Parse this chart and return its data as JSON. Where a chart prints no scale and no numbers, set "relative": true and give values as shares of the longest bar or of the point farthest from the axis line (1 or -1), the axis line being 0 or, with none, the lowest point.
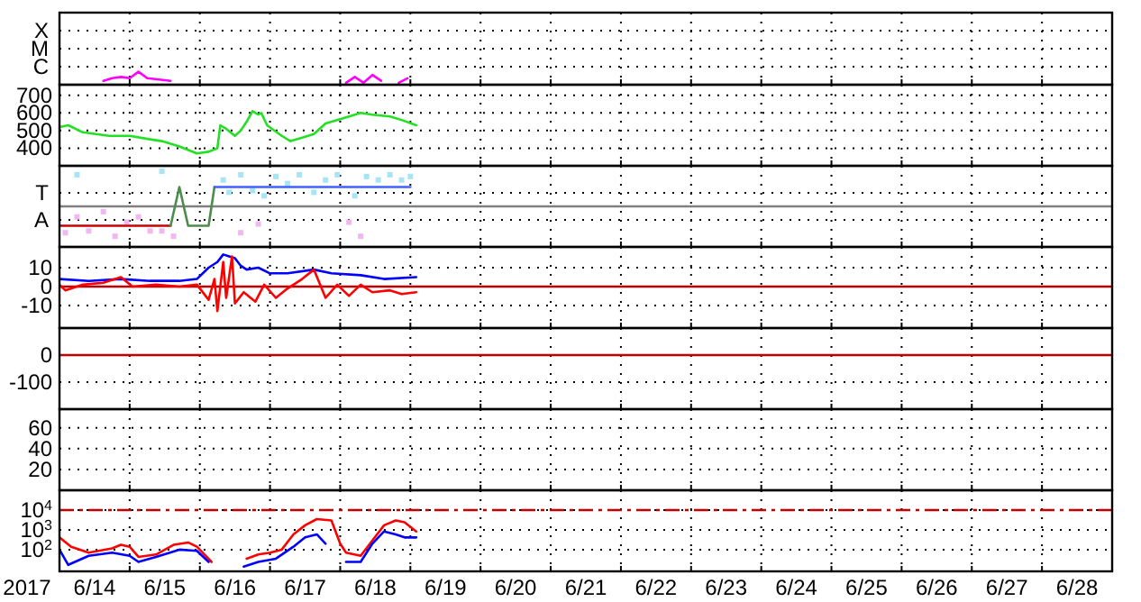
{
  "chart_data": [
    {
      "type": "line",
      "relative": true,
      "xlim": [
        "2017-06-14",
        "2017-06-29"
      ],
      "grid": "x",
      "tick_labels": false,
      "marker": "none",
      "annotations": [
        "X",
        "M",
        "C"
      ],
      "xticks": [
        {
          "value": "2017-06-15",
          "label": null
        },
        {
          "value": "2017-06-16",
          "label": null
        },
        {
          "value": "2017-06-17",
          "label": null
        },
        {
          "value": "2017-06-18",
          "label": null
        },
        {
          "value": "2017-06-19",
          "label": null
        },
        {
          "value": "2017-06-20",
          "label": null
        },
        {
          "value": "2017-06-21",
          "label": null
        },
        {
          "value": "2017-06-22",
          "label": null
        },
        {
          "value": "2017-06-23",
          "label": null
        },
        {
          "value": "2017-06-24",
          "label": null
        },
        {
          "value": "2017-06-25",
          "label": null
        },
        {
          "value": "2017-06-26",
          "label": null
        },
        {
          "value": "2017-06-27",
          "label": null
        },
        {
          "value": "2017-06-28",
          "label": null
        }
      ],
      "series": [
        {
          "color": "#ff00ff",
          "x": [
            "2017-06-14T15:00",
            "2017-06-14T18:00",
            "2017-06-14T21:00",
            "2017-06-15T00:00",
            "2017-06-15T03:00",
            "2017-06-15T06:00",
            "2017-06-15T10:00",
            "2017-06-15T14:00"
          ],
          "values": [
            0.3,
            0.5,
            0.6,
            0.5,
            1,
            0.5,
            0.4,
            0.3
          ]
        },
        {
          "color": "#ff00ff",
          "x": [
            "2017-06-18T02:00",
            "2017-06-18T05:00",
            "2017-06-18T08:00",
            "2017-06-18T11:00",
            "2017-06-18T14:00"
          ],
          "values": [
            0.15,
            0.6,
            0.15,
            0.75,
            0.3
          ]
        },
        {
          "color": "#ff00ff",
          "x": [
            "2017-06-18T20:00",
            "2017-06-18T23:00"
          ],
          "values": [
            0.15,
            0.5
          ]
        }
      ]
    },
    {
      "type": "line",
      "xlim": [
        "2017-06-14",
        "2017-06-29"
      ],
      "ylim": [
        300,
        760
      ],
      "grid": true,
      "tick_labels": "y",
      "marker": "none",
      "yticks": [
        400,
        500,
        600,
        700
      ],
      "xticks": [
        {
          "value": "2017-06-15",
          "label": null
        },
        {
          "value": "2017-06-16",
          "label": null
        },
        {
          "value": "2017-06-17",
          "label": null
        },
        {
          "value": "2017-06-18",
          "label": null
        },
        {
          "value": "2017-06-19",
          "label": null
        },
        {
          "value": "2017-06-20",
          "label": null
        },
        {
          "value": "2017-06-21",
          "label": null
        },
        {
          "value": "2017-06-22",
          "label": null
        },
        {
          "value": "2017-06-23",
          "label": null
        },
        {
          "value": "2017-06-24",
          "label": null
        },
        {
          "value": "2017-06-25",
          "label": null
        },
        {
          "value": "2017-06-26",
          "label": null
        },
        {
          "value": "2017-06-27",
          "label": null
        },
        {
          "value": "2017-06-28",
          "label": null
        }
      ],
      "series": [
        {
          "color": "#22e022",
          "x": [
            "2017-06-14T00:00",
            "2017-06-14T03:00",
            "2017-06-14T08:00",
            "2017-06-14T17:00",
            "2017-06-15T00:00",
            "2017-06-15T07:00",
            "2017-06-15T11:00",
            "2017-06-15T17:00",
            "2017-06-15T23:00",
            "2017-06-16T03:00",
            "2017-06-16T06:00",
            "2017-06-16T07:00",
            "2017-06-16T09:00",
            "2017-06-16T12:00",
            "2017-06-16T14:00",
            "2017-06-16T16:00",
            "2017-06-16T18:00",
            "2017-06-16T20:00",
            "2017-06-16T21:00",
            "2017-06-16T23:00",
            "2017-06-17T04:00",
            "2017-06-17T07:00",
            "2017-06-17T11:00",
            "2017-06-17T15:00",
            "2017-06-17T19:00",
            "2017-06-18T01:00",
            "2017-06-18T07:00",
            "2017-06-18T11:00",
            "2017-06-18T17:00",
            "2017-06-18T21:00",
            "2017-06-19T02:00"
          ],
          "values": [
            520,
            530,
            490,
            470,
            470,
            450,
            440,
            410,
            370,
            380,
            400,
            530,
            510,
            470,
            500,
            550,
            610,
            590,
            600,
            530,
            470,
            440,
            460,
            480,
            540,
            570,
            600,
            590,
            580,
            560,
            530
          ]
        }
      ]
    },
    {
      "type": "line",
      "relative": true,
      "xlim": [
        "2017-06-14",
        "2017-06-29"
      ],
      "grid": "x",
      "tick_labels": false,
      "marker": "none",
      "annotations": [
        "T",
        "A"
      ],
      "xticks": [
        {
          "value": "2017-06-15",
          "label": null
        },
        {
          "value": "2017-06-16",
          "label": null
        },
        {
          "value": "2017-06-17",
          "label": null
        },
        {
          "value": "2017-06-18",
          "label": null
        },
        {
          "value": "2017-06-19",
          "label": null
        },
        {
          "value": "2017-06-20",
          "label": null
        },
        {
          "value": "2017-06-21",
          "label": null
        },
        {
          "value": "2017-06-22",
          "label": null
        },
        {
          "value": "2017-06-23",
          "label": null
        },
        {
          "value": "2017-06-24",
          "label": null
        },
        {
          "value": "2017-06-25",
          "label": null
        },
        {
          "value": "2017-06-26",
          "label": null
        },
        {
          "value": "2017-06-27",
          "label": null
        },
        {
          "value": "2017-06-28",
          "label": null
        }
      ],
      "ref_lines": [
        {
          "axis": "y",
          "value": 0,
          "color": "#808080"
        }
      ],
      "series": [
        {
          "type": "scatter",
          "marker": "square",
          "color": "#a8e4f8",
          "x": [
            "2017-06-14T06:00",
            "2017-06-15T11:00",
            "2017-06-16T08:00",
            "2017-06-16T10:00",
            "2017-06-16T14:00",
            "2017-06-16T18:00",
            "2017-06-16T22:00",
            "2017-06-17T02:00",
            "2017-06-17T06:00",
            "2017-06-17T10:00",
            "2017-06-17T15:00",
            "2017-06-17T19:00",
            "2017-06-17T23:00",
            "2017-06-18T05:00",
            "2017-06-18T09:00",
            "2017-06-18T13:00",
            "2017-06-18T17:00",
            "2017-06-18T21:00",
            "2017-06-19T00:00"
          ],
          "values": [
            0.9,
            1,
            0.75,
            0.4,
            0.9,
            0.45,
            0.3,
            0.85,
            0.65,
            0.9,
            0.4,
            0.75,
            0.9,
            0.3,
            0.85,
            0.75,
            0.9,
            0.75,
            0.85
          ]
        },
        {
          "type": "scatter",
          "marker": "square",
          "color": "#f0b8f0",
          "x": [
            "2017-06-14T02:00",
            "2017-06-14T06:00",
            "2017-06-14T10:00",
            "2017-06-14T15:00",
            "2017-06-14T19:00",
            "2017-06-14T23:00",
            "2017-06-15T03:00",
            "2017-06-15T07:00",
            "2017-06-15T11:00",
            "2017-06-15T15:00",
            "2017-06-16T14:00",
            "2017-06-16T20:00",
            "2017-06-18T03:00",
            "2017-06-18T07:00"
          ],
          "values": [
            -0.75,
            -0.3,
            -0.7,
            -0.15,
            -0.85,
            -0.45,
            -0.3,
            -0.7,
            -0.7,
            -0.85,
            -0.75,
            -0.5,
            -0.45,
            -0.85
          ]
        },
        {
          "color": "#cc0000",
          "x": [
            "2017-06-14T00:00",
            "2017-06-15T14:00"
          ],
          "values": [
            -0.55,
            -0.55
          ]
        },
        {
          "color": "#4c8c4c",
          "x": [
            "2017-06-15T14:00",
            "2017-06-15T17:00",
            "2017-06-15T20:00",
            "2017-06-16T03:00",
            "2017-06-16T05:00"
          ],
          "values": [
            -0.55,
            0.55,
            -0.55,
            -0.55,
            0.55
          ]
        },
        {
          "color": "#4060ff",
          "x": [
            "2017-06-16T05:00",
            "2017-06-19T00:00"
          ],
          "values": [
            0.55,
            0.55
          ]
        }
      ]
    },
    {
      "type": "line",
      "xlim": [
        "2017-06-14",
        "2017-06-29"
      ],
      "ylim": [
        -22,
        21
      ],
      "grid": true,
      "tick_labels": "y",
      "marker": "none",
      "yticks": [
        -10,
        0,
        10
      ],
      "xticks": [
        {
          "value": "2017-06-15",
          "label": null
        },
        {
          "value": "2017-06-16",
          "label": null
        },
        {
          "value": "2017-06-17",
          "label": null
        },
        {
          "value": "2017-06-18",
          "label": null
        },
        {
          "value": "2017-06-19",
          "label": null
        },
        {
          "value": "2017-06-20",
          "label": null
        },
        {
          "value": "2017-06-21",
          "label": null
        },
        {
          "value": "2017-06-22",
          "label": null
        },
        {
          "value": "2017-06-23",
          "label": null
        },
        {
          "value": "2017-06-24",
          "label": null
        },
        {
          "value": "2017-06-25",
          "label": null
        },
        {
          "value": "2017-06-26",
          "label": null
        },
        {
          "value": "2017-06-27",
          "label": null
        },
        {
          "value": "2017-06-28",
          "label": null
        }
      ],
      "ref_lines": [
        {
          "axis": "y",
          "value": 0,
          "color": "#c00000"
        }
      ],
      "series": [
        {
          "color": "#0000ff",
          "x": [
            "2017-06-14T00:00",
            "2017-06-14T10:00",
            "2017-06-14T21:00",
            "2017-06-15T07:00",
            "2017-06-15T17:00",
            "2017-06-15T23:00",
            "2017-06-16T03:00",
            "2017-06-16T06:00",
            "2017-06-16T08:00",
            "2017-06-16T10:00",
            "2017-06-16T12:00",
            "2017-06-16T14:00",
            "2017-06-16T16:00",
            "2017-06-16T20:00",
            "2017-06-17T00:00",
            "2017-06-17T06:00",
            "2017-06-17T15:00",
            "2017-06-17T21:00",
            "2017-06-18T07:00",
            "2017-06-18T15:00",
            "2017-06-19T02:00"
          ],
          "values": [
            4,
            3,
            4,
            3,
            3,
            4,
            10,
            13,
            17,
            16,
            15,
            11,
            9,
            10,
            7,
            7,
            9,
            7,
            6,
            4,
            5
          ]
        },
        {
          "color": "#ff0000",
          "x": [
            "2017-06-14T00:00",
            "2017-06-14T02:00",
            "2017-06-14T08:00",
            "2017-06-14T15:00",
            "2017-06-14T21:00",
            "2017-06-15T01:00",
            "2017-06-15T09:00",
            "2017-06-15T17:00",
            "2017-06-15T23:00",
            "2017-06-16T03:00",
            "2017-06-16T05:00",
            "2017-06-16T06:00",
            "2017-06-16T08:00",
            "2017-06-16T09:00",
            "2017-06-16T11:00",
            "2017-06-16T12:00",
            "2017-06-16T15:00",
            "2017-06-16T19:00",
            "2017-06-16T22:00",
            "2017-06-17T02:00",
            "2017-06-17T06:00",
            "2017-06-17T11:00",
            "2017-06-17T15:00",
            "2017-06-17T19:00",
            "2017-06-17T23:00",
            "2017-06-18T03:00",
            "2017-06-18T07:00",
            "2017-06-18T11:00",
            "2017-06-18T17:00",
            "2017-06-18T21:00",
            "2017-06-19T02:00"
          ],
          "values": [
            1,
            -2,
            1,
            2,
            5,
            0,
            1,
            0,
            1,
            -7,
            4,
            -13,
            13,
            -6,
            16,
            -9,
            -3,
            -8,
            1,
            -6,
            -1,
            4,
            9,
            -6,
            1,
            -5,
            1,
            -3,
            -2,
            -4,
            -3
          ]
        }
      ]
    },
    {
      "type": "line",
      "xlim": [
        "2017-06-14",
        "2017-06-29"
      ],
      "ylim": [
        -200,
        100
      ],
      "grid": true,
      "tick_labels": "y",
      "yticks": [
        -100,
        0
      ],
      "xticks": [
        {
          "value": "2017-06-15",
          "label": null
        },
        {
          "value": "2017-06-16",
          "label": null
        },
        {
          "value": "2017-06-17",
          "label": null
        },
        {
          "value": "2017-06-18",
          "label": null
        },
        {
          "value": "2017-06-19",
          "label": null
        },
        {
          "value": "2017-06-20",
          "label": null
        },
        {
          "value": "2017-06-21",
          "label": null
        },
        {
          "value": "2017-06-22",
          "label": null
        },
        {
          "value": "2017-06-23",
          "label": null
        },
        {
          "value": "2017-06-24",
          "label": null
        },
        {
          "value": "2017-06-25",
          "label": null
        },
        {
          "value": "2017-06-26",
          "label": null
        },
        {
          "value": "2017-06-27",
          "label": null
        },
        {
          "value": "2017-06-28",
          "label": null
        }
      ],
      "ref_lines": [
        {
          "axis": "y",
          "value": 0,
          "color": "#c00000"
        }
      ]
    },
    {
      "type": "line",
      "xlim": [
        "2017-06-14",
        "2017-06-29"
      ],
      "ylim": [
        0,
        78
      ],
      "grid": true,
      "tick_labels": "y",
      "yticks": [
        20,
        40,
        60
      ],
      "xticks": [
        {
          "value": "2017-06-15",
          "label": null
        },
        {
          "value": "2017-06-16",
          "label": null
        },
        {
          "value": "2017-06-17",
          "label": null
        },
        {
          "value": "2017-06-18",
          "label": null
        },
        {
          "value": "2017-06-19",
          "label": null
        },
        {
          "value": "2017-06-20",
          "label": null
        },
        {
          "value": "2017-06-21",
          "label": null
        },
        {
          "value": "2017-06-22",
          "label": null
        },
        {
          "value": "2017-06-23",
          "label": null
        },
        {
          "value": "2017-06-24",
          "label": null
        },
        {
          "value": "2017-06-25",
          "label": null
        },
        {
          "value": "2017-06-26",
          "label": null
        },
        {
          "value": "2017-06-27",
          "label": null
        },
        {
          "value": "2017-06-28",
          "label": null
        }
      ]
    },
    {
      "type": "line",
      "xlim": [
        "2017-06-14",
        "2017-06-29"
      ],
      "ylim": [
        8,
        100000
      ],
      "log": true,
      "grid": true,
      "marker": "none",
      "xlabel": "2017",
      "yticks": [
        {
          "value": 100,
          "label": "10$^{2}$"
        },
        {
          "value": 1000,
          "label": "10$^{3}$"
        },
        {
          "value": 10000,
          "label": "10$^{4}$"
        }
      ],
      "xticks": [
        {
          "value": "2017-06-14T12:00",
          "label": "6/14"
        },
        {
          "value": "2017-06-15",
          "label": null
        },
        {
          "value": "2017-06-15T12:00",
          "label": "6/15"
        },
        {
          "value": "2017-06-16",
          "label": null
        },
        {
          "value": "2017-06-16T12:00",
          "label": "6/16"
        },
        {
          "value": "2017-06-17",
          "label": null
        },
        {
          "value": "2017-06-17T12:00",
          "label": "6/17"
        },
        {
          "value": "2017-06-18",
          "label": null
        },
        {
          "value": "2017-06-18T12:00",
          "label": "6/18"
        },
        {
          "value": "2017-06-19",
          "label": null
        },
        {
          "value": "2017-06-19T12:00",
          "label": "6/19"
        },
        {
          "value": "2017-06-20",
          "label": null
        },
        {
          "value": "2017-06-20T12:00",
          "label": "6/20"
        },
        {
          "value": "2017-06-21",
          "label": null
        },
        {
          "value": "2017-06-21T12:00",
          "label": "6/21"
        },
        {
          "value": "2017-06-22",
          "label": null
        },
        {
          "value": "2017-06-22T12:00",
          "label": "6/22"
        },
        {
          "value": "2017-06-23",
          "label": null
        },
        {
          "value": "2017-06-23T12:00",
          "label": "6/23"
        },
        {
          "value": "2017-06-24",
          "label": null
        },
        {
          "value": "2017-06-24T12:00",
          "label": "6/24"
        },
        {
          "value": "2017-06-25",
          "label": null
        },
        {
          "value": "2017-06-25T12:00",
          "label": "6/25"
        },
        {
          "value": "2017-06-26",
          "label": null
        },
        {
          "value": "2017-06-26T12:00",
          "label": "6/26"
        },
        {
          "value": "2017-06-27",
          "label": null
        },
        {
          "value": "2017-06-27T12:00",
          "label": "6/27"
        },
        {
          "value": "2017-06-28",
          "label": null
        },
        {
          "value": "2017-06-28T12:00",
          "label": "6/28"
        }
      ],
      "ref_lines": [
        {
          "axis": "y",
          "value": 10000,
          "color": "#c00000",
          "line_style": "dashdot"
        }
      ],
      "series": [
        {
          "color": "#ff0000",
          "x": [
            "2017-06-14T00:00",
            "2017-06-14T04:00",
            "2017-06-14T10:00",
            "2017-06-14T18:00",
            "2017-06-14T21:00",
            "2017-06-15T00:00",
            "2017-06-15T03:00",
            "2017-06-15T09:00",
            "2017-06-15T15:00",
            "2017-06-15T20:00",
            "2017-06-15T23:00",
            "2017-06-16T04:00",
            "2017-06-16T06:00",
            "2017-06-16T16:00",
            "2017-06-16T20:00",
            "2017-06-17T00:00",
            "2017-06-17T04:00",
            "2017-06-17T08:00",
            "2017-06-17T12:00",
            "2017-06-17T16:00",
            "2017-06-17T21:00",
            "2017-06-18T00:00",
            "2017-06-18T02:00",
            "2017-06-18T07:00",
            "2017-06-18T11:00",
            "2017-06-18T15:00",
            "2017-06-18T19:00",
            "2017-06-18T22:00",
            "2017-06-19T02:00"
          ],
          "values": [
            415,
            140,
            70,
            115,
            175,
            140,
            43,
            57,
            175,
            230,
            140,
            24,
            null,
            35,
            57,
            70,
            100,
            590,
            1700,
            3500,
            3000,
            200,
            70,
            49,
            290,
            1700,
            3000,
            2400,
            830
          ]
        },
        {
          "color": "#0000ff",
          "x": [
            "2017-06-14T00:00",
            "2017-06-14T03:00",
            "2017-06-14T10:00",
            "2017-06-14T18:00",
            "2017-06-15T00:00",
            "2017-06-15T03:00",
            "2017-06-15T09:00",
            "2017-06-15T17:00",
            "2017-06-15T23:00",
            "2017-06-16T03:00",
            "2017-06-16T05:00",
            "2017-06-16T15:00",
            "2017-06-16T20:00",
            "2017-06-17T02:00",
            "2017-06-17T08:00",
            "2017-06-17T12:00",
            "2017-06-17T16:00",
            "2017-06-17T19:00",
            "2017-06-17T23:00",
            "2017-06-18T02:00",
            "2017-06-18T07:00",
            "2017-06-18T11:00",
            "2017-06-18T15:00",
            "2017-06-18T19:00",
            "2017-06-18T22:00",
            "2017-06-19T02:00"
          ],
          "values": [
            100,
            17,
            49,
            70,
            49,
            24,
            43,
            100,
            87,
            24,
            null,
            14,
            24,
            35,
            140,
            415,
            590,
            200,
            null,
            24,
            24,
            200,
            830,
            590,
            415,
            415
          ]
        }
      ]
    }
  ]
}
